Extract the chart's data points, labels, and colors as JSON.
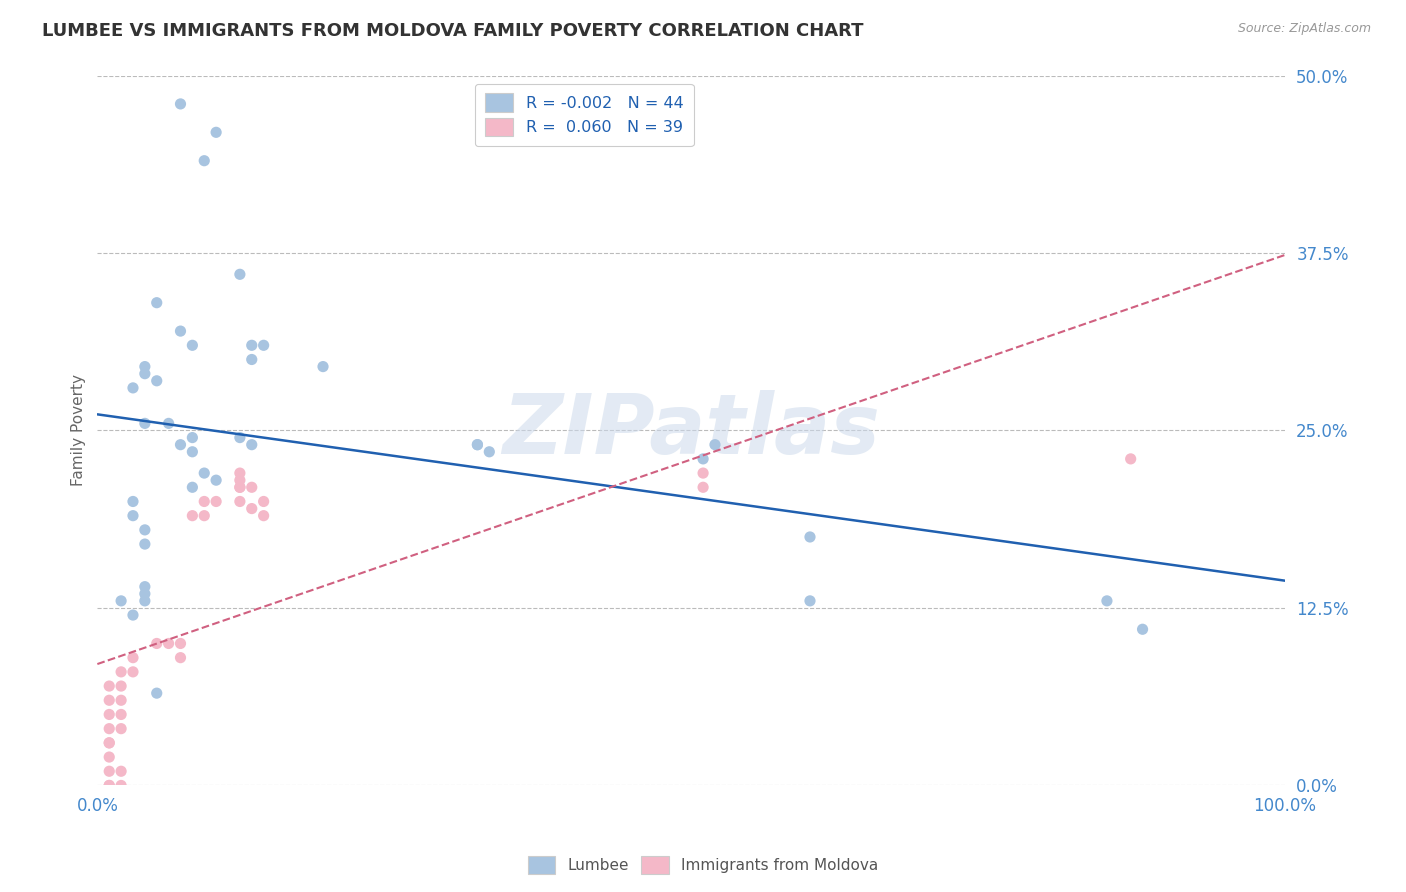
{
  "title": "LUMBEE VS IMMIGRANTS FROM MOLDOVA FAMILY POVERTY CORRELATION CHART",
  "source": "Source: ZipAtlas.com",
  "ylabel": "Family Poverty",
  "xlim": [
    0,
    1.0
  ],
  "ylim": [
    0,
    0.5
  ],
  "yticks": [
    0.0,
    0.125,
    0.25,
    0.375,
    0.5
  ],
  "ytick_labels": [
    "0.0%",
    "12.5%",
    "25.0%",
    "37.5%",
    "50.0%"
  ],
  "xtick_labels_left": "0.0%",
  "xtick_labels_right": "100.0%",
  "watermark": "ZIPatlas",
  "legend_r1": "R = -0.002",
  "legend_n1": "N = 44",
  "legend_r2": "R =  0.060",
  "legend_n2": "N = 39",
  "blue_color": "#a8c4e0",
  "pink_color": "#f4b8c8",
  "blue_line_color": "#2060b0",
  "pink_line_color": "#d06080",
  "grid_color": "#bbbbbb",
  "title_color": "#333333",
  "axis_label_color": "#4488cc",
  "lumbee_x": [
    0.07,
    0.1,
    0.09,
    0.12,
    0.05,
    0.07,
    0.08,
    0.13,
    0.14,
    0.04,
    0.05,
    0.04,
    0.03,
    0.04,
    0.06,
    0.07,
    0.08,
    0.12,
    0.19,
    0.13,
    0.13,
    0.08,
    0.09,
    0.1,
    0.08,
    0.33,
    0.32,
    0.32,
    0.51,
    0.52,
    0.6,
    0.6,
    0.85,
    0.88,
    0.03,
    0.03,
    0.04,
    0.04,
    0.04,
    0.04,
    0.02,
    0.03,
    0.04,
    0.05
  ],
  "lumbee_y": [
    0.48,
    0.46,
    0.44,
    0.36,
    0.34,
    0.32,
    0.31,
    0.31,
    0.31,
    0.295,
    0.285,
    0.29,
    0.28,
    0.255,
    0.255,
    0.24,
    0.235,
    0.245,
    0.295,
    0.3,
    0.24,
    0.245,
    0.22,
    0.215,
    0.21,
    0.235,
    0.24,
    0.24,
    0.23,
    0.24,
    0.13,
    0.175,
    0.13,
    0.11,
    0.2,
    0.19,
    0.18,
    0.17,
    0.14,
    0.135,
    0.13,
    0.12,
    0.13,
    0.065
  ],
  "moldova_x": [
    0.01,
    0.01,
    0.01,
    0.01,
    0.01,
    0.01,
    0.01,
    0.01,
    0.01,
    0.01,
    0.02,
    0.02,
    0.02,
    0.02,
    0.02,
    0.02,
    0.02,
    0.03,
    0.03,
    0.05,
    0.06,
    0.07,
    0.07,
    0.08,
    0.09,
    0.09,
    0.1,
    0.12,
    0.12,
    0.12,
    0.12,
    0.12,
    0.13,
    0.13,
    0.14,
    0.14,
    0.51,
    0.51,
    0.87
  ],
  "moldova_y": [
    0.0,
    0.0,
    0.01,
    0.02,
    0.03,
    0.03,
    0.04,
    0.05,
    0.06,
    0.07,
    0.0,
    0.01,
    0.04,
    0.05,
    0.06,
    0.07,
    0.08,
    0.08,
    0.09,
    0.1,
    0.1,
    0.09,
    0.1,
    0.19,
    0.19,
    0.2,
    0.2,
    0.2,
    0.21,
    0.215,
    0.22,
    0.21,
    0.195,
    0.21,
    0.19,
    0.2,
    0.21,
    0.22,
    0.23
  ]
}
